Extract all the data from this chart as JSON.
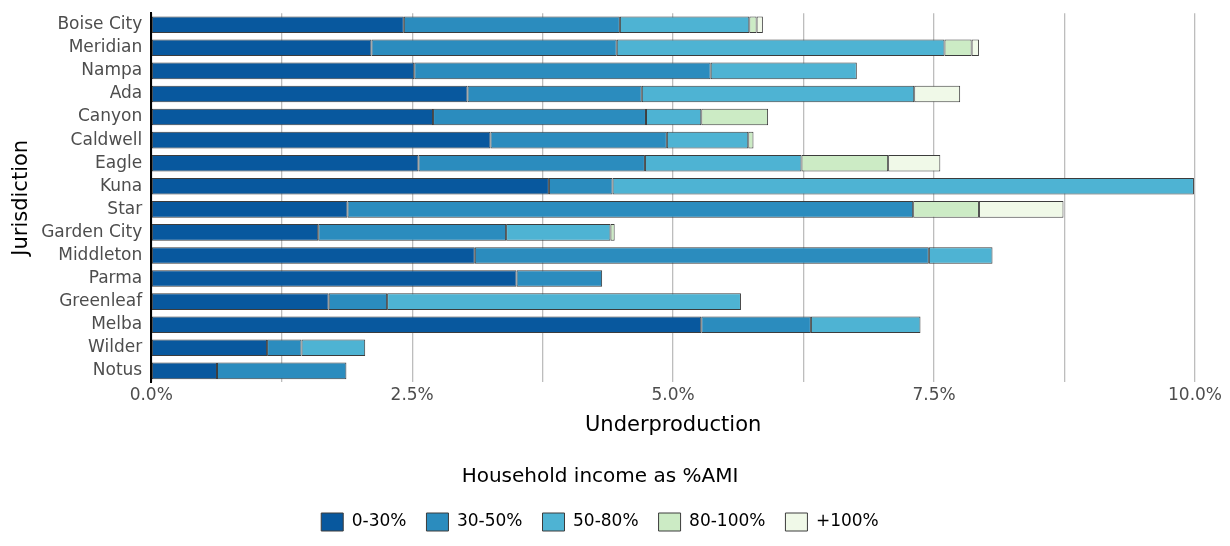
{
  "chart_data": {
    "type": "bar",
    "orientation": "horizontal",
    "stacked": true,
    "xlabel": "Underproduction",
    "ylabel": "Jurisdiction",
    "legend_title": "Household income as %AMI",
    "legend": "bottom",
    "grid": "x",
    "categories": [
      "Boise City",
      "Meridian",
      "Nampa",
      "Ada",
      "Canyon",
      "Caldwell",
      "Eagle",
      "Kuna",
      "Star",
      "Garden City",
      "Middleton",
      "Parma",
      "Greenleaf",
      "Melba",
      "Wilder",
      "Notus"
    ],
    "xlim": [
      0,
      10
    ],
    "xticks": [
      {
        "value": 0,
        "label": "0.0%"
      },
      {
        "value": 1.25,
        "label": null
      },
      {
        "value": 2.5,
        "label": "2.5%"
      },
      {
        "value": 3.75,
        "label": null
      },
      {
        "value": 5,
        "label": "5.0%"
      },
      {
        "value": 6.25,
        "label": null
      },
      {
        "value": 7.5,
        "label": "7.5%"
      },
      {
        "value": 8.75,
        "label": null
      },
      {
        "value": 10,
        "label": "10.0%"
      }
    ],
    "series": [
      {
        "name": "0-30%",
        "color": "#08589e",
        "values": [
          2.42,
          2.11,
          2.52,
          3.03,
          2.7,
          3.25,
          2.56,
          3.81,
          1.88,
          1.6,
          3.1,
          3.5,
          1.7,
          5.27,
          1.11,
          0.63
        ]
      },
      {
        "name": "30-50%",
        "color": "#2b8cbe",
        "values": [
          2.07,
          2.35,
          2.84,
          1.67,
          2.04,
          1.69,
          2.17,
          0.61,
          5.42,
          1.8,
          4.35,
          0.82,
          0.56,
          1.05,
          0.33,
          1.24
        ]
      },
      {
        "name": "50-80%",
        "color": "#4eb3d3",
        "values": [
          1.24,
          3.14,
          1.4,
          2.61,
          0.53,
          0.78,
          1.5,
          5.57,
          null,
          1.0,
          0.61,
          null,
          3.39,
          1.05,
          0.61,
          null
        ]
      },
      {
        "name": "80-100%",
        "color": "#ccebc5",
        "values": [
          0.07,
          0.26,
          null,
          null,
          0.64,
          0.05,
          0.83,
          null,
          0.63,
          0.04,
          null,
          null,
          null,
          null,
          null,
          null
        ]
      },
      {
        "name": "+100%",
        "color": "#f0f9e8",
        "values": [
          0.06,
          0.07,
          null,
          0.44,
          null,
          null,
          0.5,
          null,
          0.81,
          null,
          null,
          null,
          null,
          null,
          null,
          null
        ]
      }
    ]
  }
}
